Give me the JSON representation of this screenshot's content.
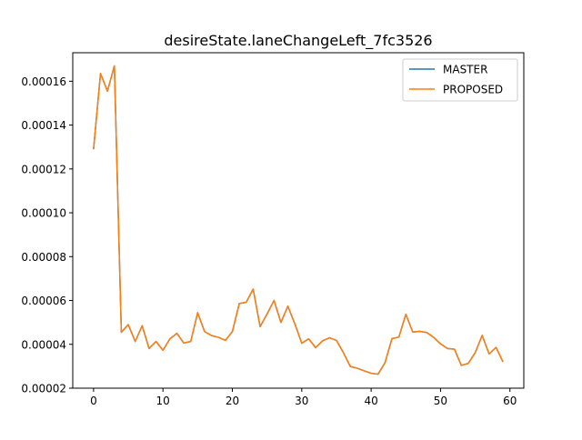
{
  "chart_data": {
    "type": "line",
    "title": "desireState.laneChangeLeft_7fc3526",
    "xlabel": "",
    "ylabel": "",
    "xlim": [
      -3,
      62
    ],
    "ylim": [
      2e-05,
      0.000173
    ],
    "x_ticks": [
      0,
      10,
      20,
      30,
      40,
      50,
      60
    ],
    "x_tick_labels": [
      "0",
      "10",
      "20",
      "30",
      "40",
      "50",
      "60"
    ],
    "y_ticks": [
      2e-05,
      4e-05,
      6e-05,
      8e-05,
      0.0001,
      0.00012,
      0.00014,
      0.00016
    ],
    "y_tick_labels": [
      "0.00002",
      "0.00004",
      "0.00006",
      "0.00008",
      "0.00010",
      "0.00012",
      "0.00014",
      "0.00016"
    ],
    "grid": false,
    "legend_position": "top-right",
    "x": [
      0,
      1,
      2,
      3,
      4,
      5,
      6,
      7,
      8,
      9,
      10,
      11,
      12,
      13,
      14,
      15,
      16,
      17,
      18,
      19,
      20,
      21,
      22,
      23,
      24,
      25,
      26,
      27,
      28,
      29,
      30,
      31,
      32,
      33,
      34,
      35,
      36,
      37,
      38,
      39,
      40,
      41,
      42,
      43,
      44,
      45,
      46,
      47,
      48,
      49,
      50,
      51,
      52,
      53,
      54,
      55,
      56,
      57,
      58,
      59
    ],
    "series": [
      {
        "name": "MASTER",
        "color": "#1f77b4",
        "values": [
          0.000129,
          0.0001635,
          0.0001555,
          0.000167,
          4.55e-05,
          4.9e-05,
          4.13e-05,
          4.85e-05,
          3.81e-05,
          4.13e-05,
          3.73e-05,
          4.25e-05,
          4.5e-05,
          4.06e-05,
          4.13e-05,
          5.44e-05,
          4.58e-05,
          4.4e-05,
          4.32e-05,
          4.18e-05,
          4.58e-05,
          5.86e-05,
          5.92e-05,
          6.52e-05,
          4.81e-05,
          5.38e-05,
          6e-05,
          5e-05,
          5.74e-05,
          4.94e-05,
          4.05e-05,
          4.25e-05,
          3.85e-05,
          4.16e-05,
          4.3e-05,
          4.18e-05,
          3.62e-05,
          2.99e-05,
          2.91e-05,
          2.79e-05,
          2.68e-05,
          2.64e-05,
          3.16e-05,
          4.26e-05,
          4.33e-05,
          5.37e-05,
          4.56e-05,
          4.59e-05,
          4.54e-05,
          4.32e-05,
          4.02e-05,
          3.81e-05,
          3.78e-05,
          3.04e-05,
          3.13e-05,
          3.62e-05,
          4.41e-05,
          3.56e-05,
          3.86e-05,
          3.2e-05
        ]
      },
      {
        "name": "PROPOSED",
        "color": "#ff7f0e",
        "values": [
          0.000129,
          0.0001635,
          0.0001555,
          0.000167,
          4.55e-05,
          4.9e-05,
          4.13e-05,
          4.85e-05,
          3.81e-05,
          4.13e-05,
          3.73e-05,
          4.25e-05,
          4.5e-05,
          4.06e-05,
          4.13e-05,
          5.44e-05,
          4.58e-05,
          4.4e-05,
          4.32e-05,
          4.18e-05,
          4.58e-05,
          5.86e-05,
          5.92e-05,
          6.52e-05,
          4.81e-05,
          5.38e-05,
          6e-05,
          5e-05,
          5.74e-05,
          4.94e-05,
          4.05e-05,
          4.25e-05,
          3.85e-05,
          4.16e-05,
          4.3e-05,
          4.18e-05,
          3.62e-05,
          2.99e-05,
          2.91e-05,
          2.79e-05,
          2.68e-05,
          2.64e-05,
          3.16e-05,
          4.26e-05,
          4.33e-05,
          5.37e-05,
          4.56e-05,
          4.59e-05,
          4.54e-05,
          4.32e-05,
          4.02e-05,
          3.81e-05,
          3.78e-05,
          3.04e-05,
          3.13e-05,
          3.62e-05,
          4.41e-05,
          3.56e-05,
          3.86e-05,
          3.2e-05
        ]
      }
    ]
  }
}
